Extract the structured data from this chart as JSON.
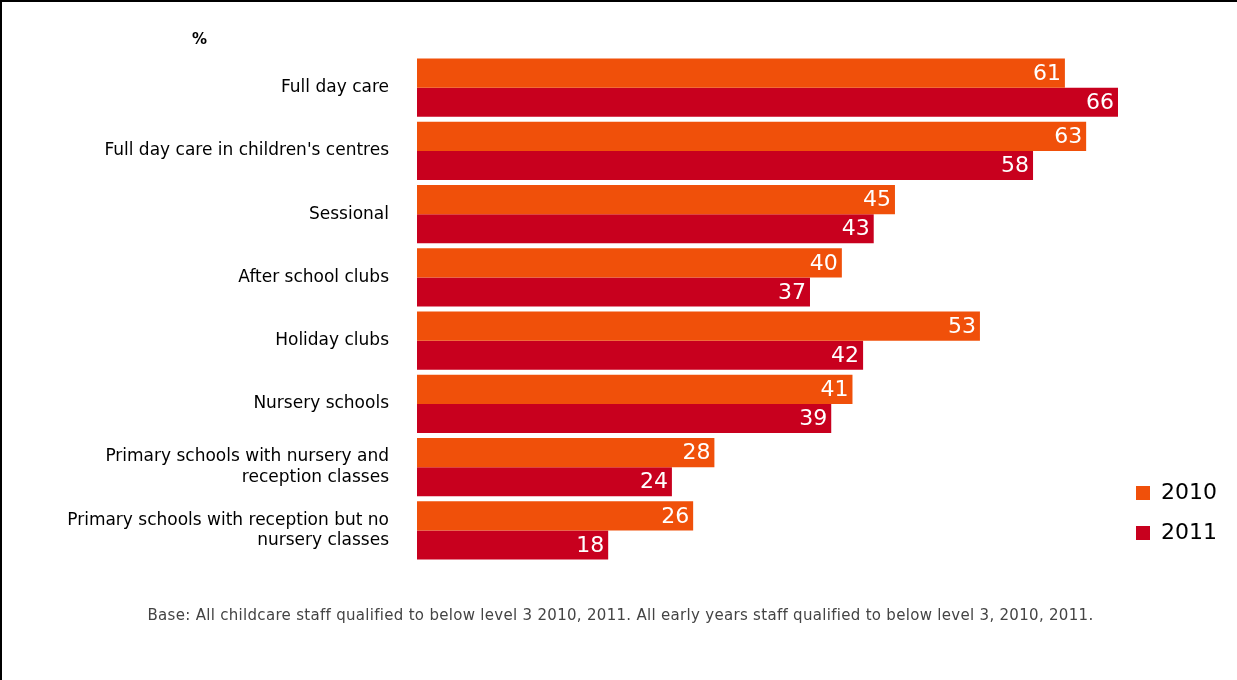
{
  "chart_data": {
    "type": "bar",
    "orientation": "horizontal",
    "xlabel": "%",
    "categories": [
      "Full day care",
      "Full day care in children's centres",
      "Sessional",
      "After school clubs",
      "Holiday clubs",
      "Nursery schools",
      "Primary schools with nursery and reception classes",
      "Primary schools with reception but no nursery classes"
    ],
    "series": [
      {
        "name": "2010",
        "color": "#f0500a",
        "values": [
          61,
          63,
          45,
          40,
          53,
          41,
          28,
          26
        ]
      },
      {
        "name": "2011",
        "color": "#c8001e",
        "values": [
          66,
          58,
          43,
          37,
          42,
          39,
          24,
          18
        ]
      }
    ],
    "data_labels": true,
    "legend": "bottom right",
    "annotations": [
      "Base: All childcare staff qualified to below level 3 2010, 2011. All early years staff qualified to below level 3, 2010, 2011."
    ]
  }
}
